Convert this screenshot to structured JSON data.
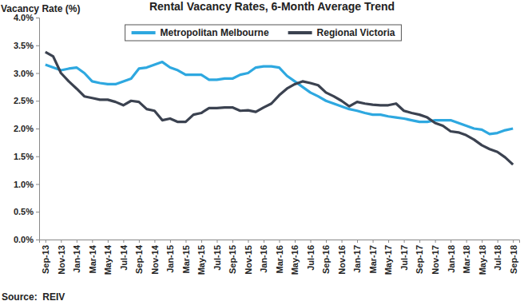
{
  "chart_data": {
    "type": "line",
    "title": "Rental Vacancy Rates, 6-Month Average Trend",
    "y_label": "Vacancy Rate (%)",
    "source": "Source:  REIV",
    "categories": [
      "Sep-13",
      null,
      "Nov-13",
      null,
      "Jan-14",
      null,
      "Mar-14",
      null,
      "May-14",
      null,
      "Jul-14",
      null,
      "Sep-14",
      null,
      "Nov-14",
      null,
      "Jan-15",
      null,
      "Mar-15",
      null,
      "May-15",
      null,
      "Jul-15",
      null,
      "Sep-15",
      null,
      "Nov-15",
      null,
      "Jan-16",
      null,
      "Mar-16",
      null,
      "May-16",
      null,
      "Jul-16",
      null,
      "Sep-16",
      null,
      "Nov-16",
      null,
      "Jan-17",
      null,
      "Mar-17",
      null,
      "May-17",
      null,
      "Jul-17",
      null,
      "Sep-17",
      null,
      "Nov-17",
      null,
      "Jan-18",
      null,
      "Mar-18",
      null,
      "May-18",
      null,
      "Jul-18",
      null,
      "Sep-18"
    ],
    "series": [
      {
        "name": "Metropolitan Melbourne",
        "color": "#2ea8e0",
        "values": [
          3.15,
          3.1,
          3.05,
          3.08,
          3.1,
          3.0,
          2.85,
          2.82,
          2.8,
          2.8,
          2.85,
          2.9,
          3.08,
          3.1,
          3.15,
          3.2,
          3.1,
          3.05,
          2.97,
          2.97,
          2.97,
          2.88,
          2.88,
          2.9,
          2.9,
          2.97,
          3.0,
          3.1,
          3.12,
          3.12,
          3.1,
          2.95,
          2.85,
          2.75,
          2.65,
          2.58,
          2.5,
          2.45,
          2.4,
          2.35,
          2.32,
          2.28,
          2.25,
          2.25,
          2.22,
          2.2,
          2.18,
          2.15,
          2.12,
          2.12,
          2.15,
          2.15,
          2.15,
          2.1,
          2.05,
          2.0,
          1.98,
          1.9,
          1.92,
          1.97,
          2.0
        ]
      },
      {
        "name": "Regional Victoria",
        "color": "#3b4250",
        "values": [
          3.38,
          3.3,
          3.0,
          2.85,
          2.72,
          2.58,
          2.55,
          2.52,
          2.52,
          2.48,
          2.42,
          2.5,
          2.48,
          2.35,
          2.32,
          2.15,
          2.18,
          2.12,
          2.12,
          2.25,
          2.28,
          2.37,
          2.37,
          2.38,
          2.38,
          2.32,
          2.33,
          2.3,
          2.38,
          2.45,
          2.6,
          2.72,
          2.8,
          2.85,
          2.82,
          2.78,
          2.65,
          2.58,
          2.5,
          2.4,
          2.48,
          2.45,
          2.43,
          2.42,
          2.42,
          2.45,
          2.32,
          2.28,
          2.25,
          2.2,
          2.1,
          2.05,
          1.95,
          1.93,
          1.88,
          1.8,
          1.7,
          1.63,
          1.58,
          1.48,
          1.35
        ]
      }
    ],
    "ylim": [
      0,
      4
    ],
    "yticks": [
      {
        "value": 0,
        "label": "0.0%"
      },
      {
        "value": 0.5,
        "label": "0.5%"
      },
      {
        "value": 1,
        "label": "1.0%"
      },
      {
        "value": 1.5,
        "label": "1.5%"
      },
      {
        "value": 2,
        "label": "2.0%"
      },
      {
        "value": 2.5,
        "label": "2.5%"
      },
      {
        "value": 3,
        "label": "3.0%"
      },
      {
        "value": 3.5,
        "label": "3.5%"
      },
      {
        "value": 4,
        "label": "4.0%"
      }
    ],
    "grid": false,
    "legend": "top"
  }
}
